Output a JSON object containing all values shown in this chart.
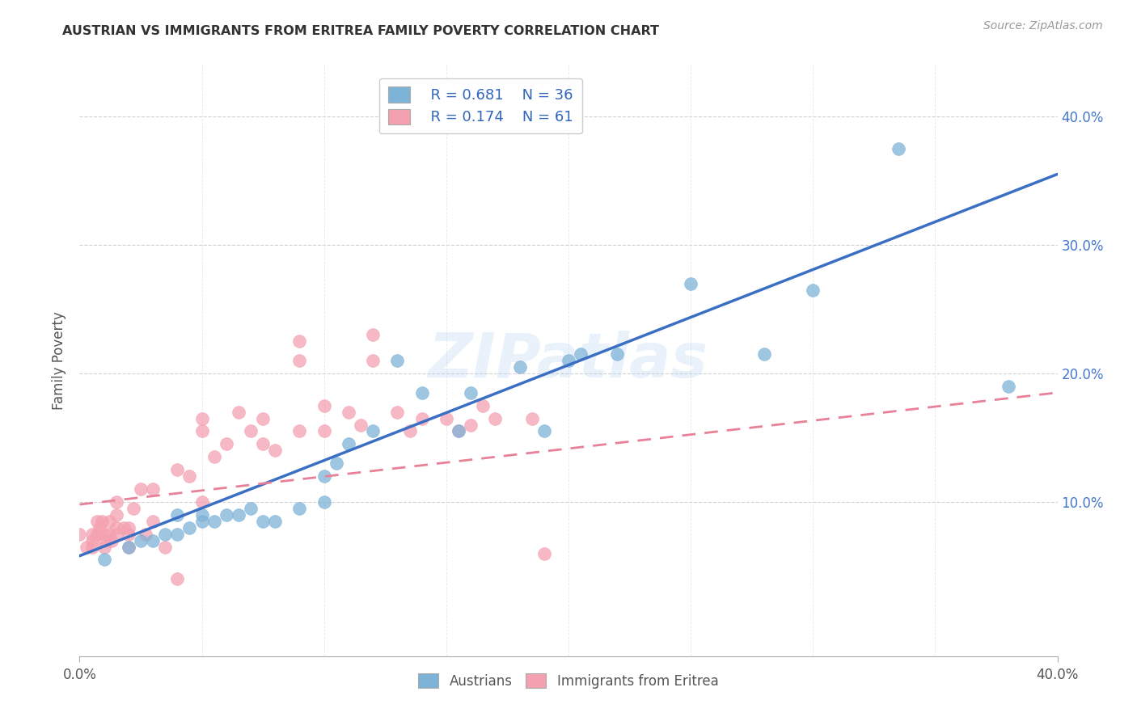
{
  "title": "AUSTRIAN VS IMMIGRANTS FROM ERITREA FAMILY POVERTY CORRELATION CHART",
  "source": "Source: ZipAtlas.com",
  "xlabel": "",
  "ylabel": "Family Poverty",
  "xlim": [
    0.0,
    0.4
  ],
  "ylim": [
    -0.02,
    0.44
  ],
  "legend_r1": "R = 0.681",
  "legend_n1": "N = 36",
  "legend_r2": "R = 0.174",
  "legend_n2": "N = 61",
  "blue_color": "#7EB3D8",
  "pink_color": "#F4A0B0",
  "blue_line_color": "#3A6FC4",
  "pink_line_color": "#E88098",
  "watermark": "ZIPatlas",
  "blue_scatter_x": [
    0.01,
    0.02,
    0.025,
    0.03,
    0.035,
    0.04,
    0.04,
    0.045,
    0.05,
    0.05,
    0.055,
    0.06,
    0.065,
    0.07,
    0.075,
    0.08,
    0.09,
    0.1,
    0.1,
    0.105,
    0.11,
    0.12,
    0.13,
    0.14,
    0.155,
    0.16,
    0.18,
    0.19,
    0.2,
    0.205,
    0.22,
    0.25,
    0.28,
    0.3,
    0.335,
    0.38
  ],
  "blue_scatter_y": [
    0.055,
    0.065,
    0.07,
    0.07,
    0.075,
    0.075,
    0.09,
    0.08,
    0.085,
    0.09,
    0.085,
    0.09,
    0.09,
    0.095,
    0.085,
    0.085,
    0.095,
    0.1,
    0.12,
    0.13,
    0.145,
    0.155,
    0.21,
    0.185,
    0.155,
    0.185,
    0.205,
    0.155,
    0.21,
    0.215,
    0.215,
    0.27,
    0.215,
    0.265,
    0.375,
    0.19
  ],
  "pink_scatter_x": [
    0.0,
    0.003,
    0.005,
    0.005,
    0.005,
    0.007,
    0.007,
    0.008,
    0.009,
    0.01,
    0.01,
    0.01,
    0.012,
    0.012,
    0.013,
    0.015,
    0.015,
    0.015,
    0.015,
    0.018,
    0.02,
    0.02,
    0.02,
    0.022,
    0.025,
    0.027,
    0.03,
    0.03,
    0.035,
    0.04,
    0.04,
    0.045,
    0.05,
    0.05,
    0.05,
    0.055,
    0.06,
    0.065,
    0.07,
    0.075,
    0.075,
    0.08,
    0.09,
    0.09,
    0.09,
    0.1,
    0.1,
    0.11,
    0.115,
    0.12,
    0.12,
    0.13,
    0.135,
    0.14,
    0.15,
    0.155,
    0.16,
    0.165,
    0.17,
    0.185,
    0.19
  ],
  "pink_scatter_y": [
    0.075,
    0.065,
    0.065,
    0.07,
    0.075,
    0.075,
    0.085,
    0.08,
    0.085,
    0.065,
    0.07,
    0.075,
    0.075,
    0.085,
    0.07,
    0.075,
    0.08,
    0.09,
    0.1,
    0.08,
    0.065,
    0.075,
    0.08,
    0.095,
    0.11,
    0.075,
    0.085,
    0.11,
    0.065,
    0.04,
    0.125,
    0.12,
    0.1,
    0.155,
    0.165,
    0.135,
    0.145,
    0.17,
    0.155,
    0.145,
    0.165,
    0.14,
    0.155,
    0.21,
    0.225,
    0.155,
    0.175,
    0.17,
    0.16,
    0.21,
    0.23,
    0.17,
    0.155,
    0.165,
    0.165,
    0.155,
    0.16,
    0.175,
    0.165,
    0.165,
    0.06
  ],
  "blue_line_x0": 0.0,
  "blue_line_y0": 0.058,
  "blue_line_x1": 0.4,
  "blue_line_y1": 0.355,
  "pink_line_x0": 0.0,
  "pink_line_y0": 0.098,
  "pink_line_x1": 0.4,
  "pink_line_y1": 0.185
}
